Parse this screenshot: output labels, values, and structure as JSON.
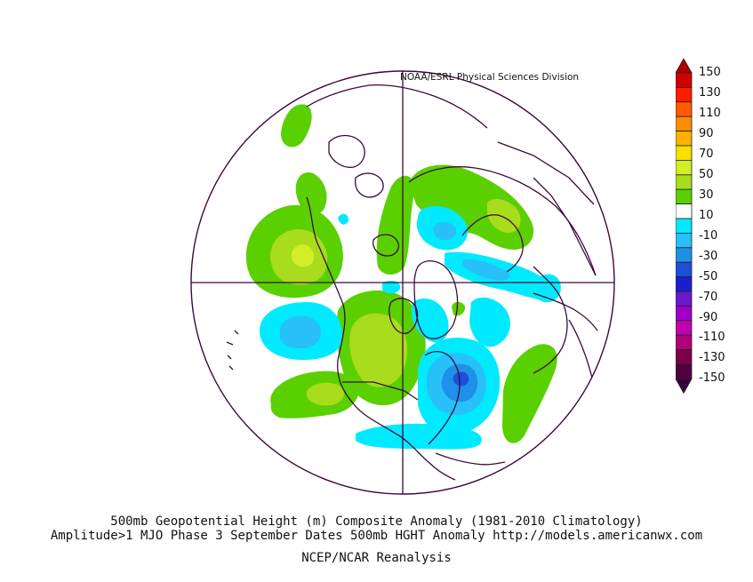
{
  "credit": "NOAA/ESRL Physical Sciences Division",
  "captions": {
    "line1": "500mb Geopotential Height (m) Composite Anomaly (1981-2010 Climatology)",
    "line2": "Amplitude>1 MJO Phase 3 September Dates 500mb HGHT Anomaly http://models.americanwx.com",
    "line3": "NCEP/NCAR Reanalysis"
  },
  "colorbar": {
    "labels": [
      "150",
      "130",
      "110",
      "90",
      "70",
      "50",
      "30",
      "10",
      "-10",
      "-30",
      "-50",
      "-70",
      "-90",
      "-110",
      "-130",
      "-150"
    ],
    "colors": [
      "#d00000",
      "#ff1d00",
      "#ff5a00",
      "#ff8c00",
      "#ffb000",
      "#f5e000",
      "#d2ee28",
      "#a8dc1c",
      "#5ad000",
      "#ffffff",
      "#00eaff",
      "#28c0f8",
      "#1f90e8",
      "#1c50d8",
      "#1a1ed2",
      "#6a18c8",
      "#a000c8",
      "#c000b0",
      "#b0007a",
      "#7a0048",
      "#500040"
    ],
    "top_arrow_color": "#b00000",
    "bottom_arrow_color": "#3c0040"
  },
  "map": {
    "projection": "north-polar-stereographic",
    "anomaly_colors": {
      "positive_10_30": "#5ad000",
      "positive_30_50": "#a8dc1c",
      "positive_50_70": "#d2ee28",
      "negative_10_30": "#00eaff",
      "negative_30_50": "#28c0f8",
      "negative_50_70": "#1f90e8",
      "negative_70_90": "#1c50d8"
    },
    "coastline_color": "#3c0a3c"
  }
}
